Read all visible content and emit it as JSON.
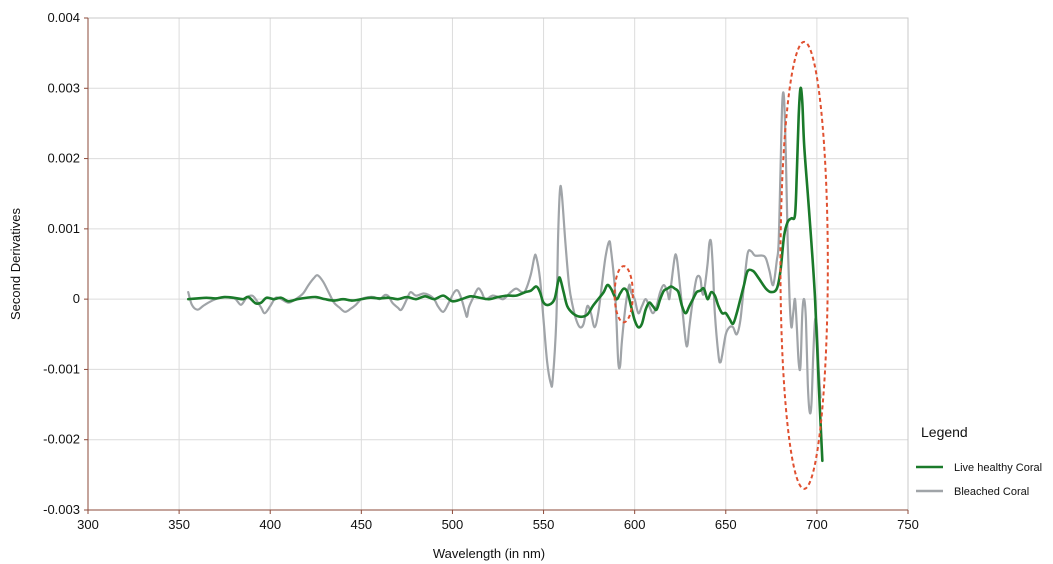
{
  "chart_data": {
    "type": "line",
    "xlabel": "Wavelength  (in nm)",
    "ylabel": "Second Derivatives",
    "xlim": [
      300,
      750
    ],
    "ylim": [
      -0.003,
      0.004
    ],
    "x_ticks": [
      300,
      350,
      400,
      450,
      500,
      550,
      600,
      650,
      700,
      750
    ],
    "x_tick_labels": [
      "300",
      "350",
      "400",
      "450",
      "500",
      "550",
      "600",
      "650",
      "700",
      "750"
    ],
    "y_ticks": [
      -0.003,
      -0.002,
      -0.001,
      0,
      0.001,
      0.002,
      0.003,
      0.004
    ],
    "y_tick_labels": [
      "-0.003",
      "-0.002",
      "-0.001",
      "0",
      "0.001",
      "0.002",
      "0.003",
      "0.004"
    ],
    "grid": true,
    "legend": {
      "title": "Legend",
      "position": "right"
    },
    "series": [
      {
        "name": "Bleached Coral",
        "color": "#a0a4a8",
        "points": [
          [
            355,
            0.0001
          ],
          [
            357,
            -8e-05
          ],
          [
            360,
            -0.00015
          ],
          [
            363,
            -0.0001
          ],
          [
            366,
            -5e-05
          ],
          [
            370,
            0.0
          ],
          [
            374,
            3e-05
          ],
          [
            378,
            2e-05
          ],
          [
            381,
            0.0
          ],
          [
            384,
            -8e-05
          ],
          [
            387,
            2e-05
          ],
          [
            390,
            5e-05
          ],
          [
            392,
            0.0
          ],
          [
            395,
            -0.00012
          ],
          [
            397,
            -0.0002
          ],
          [
            400,
            -0.0001
          ],
          [
            403,
            2e-05
          ],
          [
            406,
            0.0
          ],
          [
            410,
            -5e-05
          ],
          [
            414,
            0.0
          ],
          [
            418,
            8e-05
          ],
          [
            421,
            0.0002
          ],
          [
            424,
            0.0003
          ],
          [
            426,
            0.00034
          ],
          [
            429,
            0.00025
          ],
          [
            432,
            0.0001
          ],
          [
            435,
            -5e-05
          ],
          [
            438,
            -0.00012
          ],
          [
            441,
            -0.00018
          ],
          [
            444,
            -0.00014
          ],
          [
            447,
            -8e-05
          ],
          [
            450,
            0.0
          ],
          [
            454,
            3e-05
          ],
          [
            457,
            3e-05
          ],
          [
            460,
            0.0
          ],
          [
            463,
            6e-05
          ],
          [
            465,
            4e-05
          ],
          [
            467,
            -5e-05
          ],
          [
            470,
            -0.00012
          ],
          [
            472,
            -0.00015
          ],
          [
            475,
            0.0
          ],
          [
            477,
            0.0001
          ],
          [
            480,
            5e-05
          ],
          [
            484,
            8e-05
          ],
          [
            487,
            6e-05
          ],
          [
            490,
            0.0
          ],
          [
            492,
            -0.0001
          ],
          [
            495,
            -0.00018
          ],
          [
            498,
            -5e-05
          ],
          [
            501,
            0.0001
          ],
          [
            503,
            0.00012
          ],
          [
            505,
            0.0
          ],
          [
            507,
            -0.00018
          ],
          [
            508,
            -0.00025
          ],
          [
            509,
            -0.00012
          ],
          [
            511,
            0.0
          ],
          [
            514,
            0.00015
          ],
          [
            516,
            0.0001
          ],
          [
            518,
            0.0
          ],
          [
            522,
            5e-05
          ],
          [
            525,
            3e-05
          ],
          [
            528,
            0.0
          ],
          [
            532,
            0.0001
          ],
          [
            535,
            0.00015
          ],
          [
            538,
            0.0001
          ],
          [
            540,
            0.00012
          ],
          [
            543,
            0.00035
          ],
          [
            545,
            0.0006
          ],
          [
            546,
            0.0006
          ],
          [
            548,
            0.0003
          ],
          [
            550,
            -0.0003
          ],
          [
            552,
            -0.0009
          ],
          [
            554,
            -0.0012
          ],
          [
            555,
            -0.00115
          ],
          [
            557,
            -0.0003
          ],
          [
            558,
            0.0009
          ],
          [
            559,
            0.00155
          ],
          [
            560,
            0.0015
          ],
          [
            562,
            0.0008
          ],
          [
            564,
            0.0002
          ],
          [
            566,
            -0.0001
          ],
          [
            568,
            -0.0003
          ],
          [
            570,
            -0.0004
          ],
          [
            572,
            -0.00035
          ],
          [
            574,
            -0.0001
          ],
          [
            576,
            -0.0002
          ],
          [
            578,
            -0.0004
          ],
          [
            580,
            -0.0002
          ],
          [
            582,
            0.0002
          ],
          [
            584,
            0.0006
          ],
          [
            586,
            0.00082
          ],
          [
            587,
            0.0007
          ],
          [
            589,
            0.0002
          ],
          [
            590,
            -0.0003
          ],
          [
            591,
            -0.0009
          ],
          [
            592,
            -0.00095
          ],
          [
            593,
            -0.0006
          ],
          [
            595,
            -0.0001
          ],
          [
            597,
            0.0002
          ],
          [
            598,
            0.0001
          ],
          [
            600,
            0.0
          ],
          [
            602,
            -0.0002
          ],
          [
            604,
            -0.0001
          ],
          [
            606,
            0.0
          ],
          [
            608,
            -0.0001
          ],
          [
            610,
            -0.0002
          ],
          [
            612,
            -0.0001
          ],
          [
            614,
            0.0001
          ],
          [
            616,
            0.0002
          ],
          [
            618,
            0.0001
          ],
          [
            619,
            0.0
          ],
          [
            620,
            0.0002
          ],
          [
            622,
            0.0006
          ],
          [
            623,
            0.0006
          ],
          [
            624,
            0.0004
          ],
          [
            626,
            -0.0001
          ],
          [
            628,
            -0.0006
          ],
          [
            629,
            -0.00065
          ],
          [
            630,
            -0.0004
          ],
          [
            632,
            0.0
          ],
          [
            634,
            0.0003
          ],
          [
            636,
            0.0003
          ],
          [
            637,
            0.0001
          ],
          [
            638,
            0.0001
          ],
          [
            640,
            0.0005
          ],
          [
            641,
            0.0008
          ],
          [
            642,
            0.0008
          ],
          [
            643,
            0.0004
          ],
          [
            644,
            -0.0002
          ],
          [
            646,
            -0.0008
          ],
          [
            647,
            -0.0009
          ],
          [
            648,
            -0.0008
          ],
          [
            650,
            -0.0005
          ],
          [
            652,
            -0.0004
          ],
          [
            654,
            -0.0004
          ],
          [
            656,
            -0.0005
          ],
          [
            658,
            -0.0003
          ],
          [
            660,
            0.0002
          ],
          [
            662,
            0.00065
          ],
          [
            664,
            0.00068
          ],
          [
            666,
            0.00062
          ],
          [
            670,
            0.00062
          ],
          [
            672,
            0.00058
          ],
          [
            674,
            0.0004
          ],
          [
            676,
            0.0002
          ],
          [
            678,
            0.00055
          ],
          [
            679,
            0.0008
          ],
          [
            680,
            0.0018
          ],
          [
            681,
            0.0028
          ],
          [
            682,
            0.00285
          ],
          [
            683,
            0.002
          ],
          [
            684,
            0.0008
          ],
          [
            685,
            0.0
          ],
          [
            686,
            -0.0004
          ],
          [
            687,
            -0.0002
          ],
          [
            688,
            0.0
          ],
          [
            689,
            -0.0004
          ],
          [
            690,
            -0.0009
          ],
          [
            691,
            -0.00095
          ],
          [
            692,
            -0.0002
          ],
          [
            693,
            0.0
          ],
          [
            694,
            -0.0003
          ],
          [
            695,
            -0.0012
          ],
          [
            696,
            -0.0016
          ],
          [
            697,
            -0.0015
          ],
          [
            698,
            -0.0008
          ],
          [
            699,
            -0.0003
          ],
          [
            700,
            -0.0004
          ],
          [
            701,
            -0.001
          ],
          [
            702,
            -0.0014
          ]
        ]
      },
      {
        "name": "Live healthy Coral",
        "color": "#1a7a2a",
        "points": [
          [
            355,
            0.0
          ],
          [
            360,
            1e-05
          ],
          [
            365,
            2e-05
          ],
          [
            370,
            1e-05
          ],
          [
            375,
            3e-05
          ],
          [
            380,
            2e-05
          ],
          [
            385,
            0.0
          ],
          [
            388,
            3e-05
          ],
          [
            392,
            -6e-05
          ],
          [
            395,
            -5e-05
          ],
          [
            398,
            2e-05
          ],
          [
            402,
            0.0
          ],
          [
            406,
            2e-05
          ],
          [
            410,
            -3e-05
          ],
          [
            415,
            0.0
          ],
          [
            420,
            2e-05
          ],
          [
            425,
            3e-05
          ],
          [
            430,
            0.0
          ],
          [
            435,
            -2e-05
          ],
          [
            440,
            0.0
          ],
          [
            445,
            -2e-05
          ],
          [
            450,
            0.0
          ],
          [
            455,
            2e-05
          ],
          [
            460,
            1e-05
          ],
          [
            465,
            2e-05
          ],
          [
            470,
            0.0
          ],
          [
            475,
            3e-05
          ],
          [
            480,
            0.0
          ],
          [
            485,
            4e-05
          ],
          [
            490,
            0.0
          ],
          [
            495,
            5e-05
          ],
          [
            500,
            -3e-05
          ],
          [
            505,
            0.0
          ],
          [
            510,
            4e-05
          ],
          [
            515,
            2e-05
          ],
          [
            520,
            0.0
          ],
          [
            525,
            3e-05
          ],
          [
            530,
            5e-05
          ],
          [
            535,
            5e-05
          ],
          [
            540,
            0.0001
          ],
          [
            543,
            0.00012
          ],
          [
            546,
            0.00018
          ],
          [
            548,
            0.0001
          ],
          [
            550,
            -5e-05
          ],
          [
            553,
            -8e-05
          ],
          [
            556,
            0.0
          ],
          [
            558,
            0.00025
          ],
          [
            559,
            0.0003
          ],
          [
            561,
            0.0001
          ],
          [
            563,
            -0.0001
          ],
          [
            566,
            -0.0002
          ],
          [
            570,
            -0.00025
          ],
          [
            574,
            -0.00022
          ],
          [
            577,
            -0.0001
          ],
          [
            580,
            0.0
          ],
          [
            583,
            0.0001
          ],
          [
            585,
            0.0002
          ],
          [
            587,
            0.00015
          ],
          [
            590,
            0.0
          ],
          [
            592,
            8e-05
          ],
          [
            594,
            0.00015
          ],
          [
            596,
            0.0001
          ],
          [
            598,
            -0.0001
          ],
          [
            600,
            -0.0003
          ],
          [
            602,
            -0.0004
          ],
          [
            604,
            -0.00035
          ],
          [
            606,
            -0.00015
          ],
          [
            608,
            -5e-05
          ],
          [
            610,
            -0.0001
          ],
          [
            612,
            -0.00015
          ],
          [
            614,
            0.0
          ],
          [
            616,
            0.00012
          ],
          [
            618,
            0.00015
          ],
          [
            620,
            0.00018
          ],
          [
            622,
            0.00015
          ],
          [
            624,
            0.0001
          ],
          [
            626,
            -0.0001
          ],
          [
            628,
            -0.0002
          ],
          [
            630,
            -0.0001
          ],
          [
            632,
            0.0
          ],
          [
            634,
            0.0001
          ],
          [
            636,
            0.00012
          ],
          [
            638,
            0.00015
          ],
          [
            640,
            0.0
          ],
          [
            642,
            0.0001
          ],
          [
            644,
            5e-05
          ],
          [
            646,
            -0.0001
          ],
          [
            648,
            -0.0002
          ],
          [
            650,
            -0.0002
          ],
          [
            652,
            -0.00028
          ],
          [
            654,
            -0.00035
          ],
          [
            656,
            -0.0002
          ],
          [
            658,
            0.0
          ],
          [
            660,
            0.0002
          ],
          [
            662,
            0.0004
          ],
          [
            665,
            0.0004
          ],
          [
            668,
            0.0003
          ],
          [
            672,
            0.00015
          ],
          [
            675,
            0.0001
          ],
          [
            678,
            0.00015
          ],
          [
            680,
            0.0004
          ],
          [
            682,
            0.0009
          ],
          [
            684,
            0.0011
          ],
          [
            686,
            0.00115
          ],
          [
            688,
            0.0012
          ],
          [
            689,
            0.0018
          ],
          [
            690,
            0.0026
          ],
          [
            691,
            0.003
          ],
          [
            692,
            0.0028
          ],
          [
            693,
            0.0022
          ],
          [
            695,
            0.0015
          ],
          [
            697,
            0.0008
          ],
          [
            699,
            0.0
          ],
          [
            701,
            -0.0012
          ],
          [
            703,
            -0.0023
          ]
        ]
      }
    ],
    "annotations": [
      {
        "type": "dashed-ellipse",
        "color": "#e05030",
        "cx": 594,
        "cy": 7e-05,
        "rx": 5,
        "ry": 0.0004
      },
      {
        "type": "dashed-ellipse",
        "color": "#e05030",
        "cx": 693,
        "cy": 0.00048,
        "rx": 13,
        "ry": 0.00318
      }
    ]
  }
}
